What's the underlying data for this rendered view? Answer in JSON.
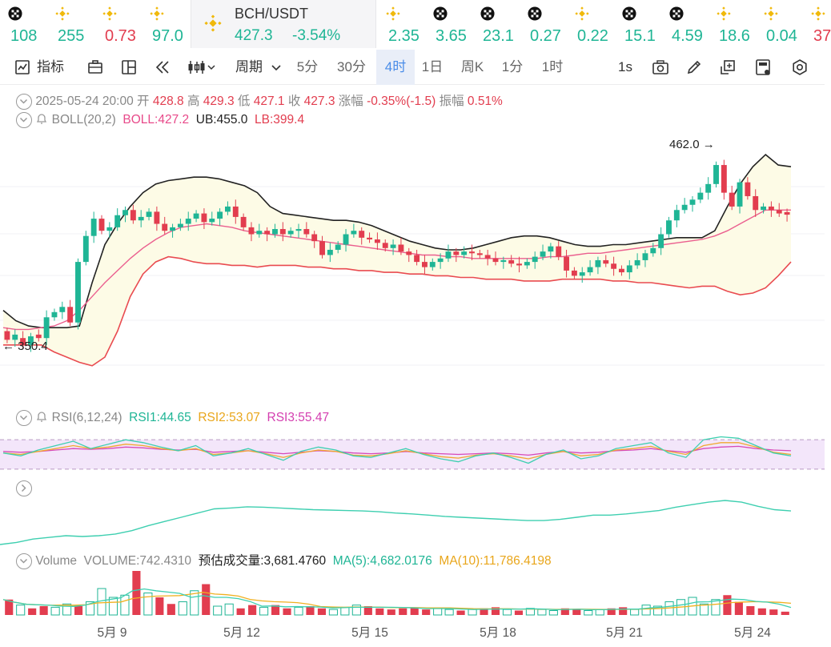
{
  "ticker": {
    "items": [
      {
        "icon": "okx-icon",
        "value": "108",
        "trend": "up"
      },
      {
        "icon": "binance-icon",
        "value": "255",
        "trend": "up"
      },
      {
        "icon": "binance-icon",
        "value": "0.73",
        "trend": "down"
      },
      {
        "icon": "binance-icon",
        "value": "97.0",
        "trend": "up"
      }
    ],
    "selected": {
      "icon": "binance-icon",
      "symbol": "BCH/USDT",
      "price": "427.3",
      "change": "-3.54%"
    },
    "items_right": [
      {
        "icon": "binance-icon",
        "value": "2.35",
        "trend": "up"
      },
      {
        "icon": "okx-icon",
        "value": "3.65",
        "trend": "up"
      },
      {
        "icon": "okx-icon",
        "value": "23.1",
        "trend": "up"
      },
      {
        "icon": "okx-icon",
        "value": "0.27",
        "trend": "up"
      },
      {
        "icon": "binance-icon",
        "value": "0.22",
        "trend": "up"
      },
      {
        "icon": "okx-icon",
        "value": "15.1",
        "trend": "up"
      },
      {
        "icon": "okx-icon",
        "value": "4.59",
        "trend": "up"
      },
      {
        "icon": "binance-icon",
        "value": "18.6",
        "trend": "up"
      },
      {
        "icon": "binance-icon",
        "value": "0.04",
        "trend": "up"
      },
      {
        "icon": "binance-icon",
        "value": "37",
        "trend": "down"
      }
    ]
  },
  "toolbar": {
    "indicators_label": "指标",
    "period_label": "周期",
    "intervals": [
      "5分",
      "30分",
      "4时",
      "1日",
      "周K",
      "1分",
      "1时"
    ],
    "active_interval": "4时",
    "speed_label": "1s"
  },
  "ohlc_info": {
    "datetime": "2025-05-24 20:00",
    "open_label": "开",
    "open": "428.8",
    "high_label": "高",
    "high": "429.3",
    "low_label": "低",
    "low": "427.1",
    "close_label": "收",
    "close": "427.3",
    "change_label": "涨幅",
    "change": "-0.35%(-1.5)",
    "amplitude_label": "振幅",
    "amplitude": "0.51%"
  },
  "boll_info": {
    "name": "BOLL(20,2)",
    "boll": "BOLL:427.2",
    "ub": "UB:455.0",
    "lb": "LB:399.4"
  },
  "rsi_info": {
    "name": "RSI(6,12,24)",
    "rsi1": "RSI1:44.65",
    "rsi2": "RSI2:53.07",
    "rsi3": "RSI3:55.47"
  },
  "volume_info": {
    "name": "Volume",
    "volume": "VOLUME:742.4310",
    "estimate": "预估成交量:3,681.4760",
    "ma5": "MA(5):4,682.0176",
    "ma10": "MA(10):11,786.4198"
  },
  "colors": {
    "up": "#1fb595",
    "down": "#e23d4f",
    "upper_band": "#222222",
    "lower_band": "#e94b50",
    "mid_band": "#eb5f8f",
    "band_fill": "#fdfbe6",
    "rsi1": "#3ecfb0",
    "rsi2": "#f0a830",
    "rsi3": "#d64ab8",
    "rsi_zone": "#f3e6fa",
    "ma5": "#3ecfb0",
    "ma10": "#f0b020"
  },
  "chart_data": {
    "type": "candlestick",
    "timeframe": "4h",
    "x_ticks": [
      "5月 9",
      "5月 12",
      "5月 15",
      "5月 18",
      "5月 21",
      "5月 24"
    ],
    "annotations": [
      {
        "text": "462.0",
        "kind": "high"
      },
      {
        "text": "350.4",
        "kind": "low"
      }
    ],
    "price_range": [
      320,
      475
    ],
    "candles": [
      [
        360,
        355
      ],
      [
        355,
        358
      ],
      [
        356,
        352
      ],
      [
        352,
        357
      ],
      [
        358,
        356
      ],
      [
        356,
        368
      ],
      [
        368,
        371
      ],
      [
        371,
        374
      ],
      [
        374,
        365
      ],
      [
        365,
        400
      ],
      [
        400,
        415
      ],
      [
        415,
        425
      ],
      [
        425,
        418
      ],
      [
        418,
        420
      ],
      [
        420,
        427
      ],
      [
        427,
        430
      ],
      [
        430,
        424
      ],
      [
        424,
        426
      ],
      [
        426,
        429
      ],
      [
        429,
        422
      ],
      [
        422,
        418
      ],
      [
        418,
        420
      ],
      [
        420,
        422
      ],
      [
        422,
        425
      ],
      [
        425,
        428
      ],
      [
        428,
        423
      ],
      [
        423,
        425
      ],
      [
        425,
        429
      ],
      [
        429,
        432
      ],
      [
        432,
        426
      ],
      [
        426,
        420
      ],
      [
        420,
        416
      ],
      [
        416,
        418
      ],
      [
        418,
        416
      ],
      [
        416,
        419
      ],
      [
        419,
        416
      ],
      [
        416,
        418
      ],
      [
        418,
        419
      ],
      [
        419,
        416
      ],
      [
        416,
        412
      ],
      [
        412,
        404
      ],
      [
        404,
        407
      ],
      [
        407,
        410
      ],
      [
        410,
        416
      ],
      [
        416,
        418
      ],
      [
        418,
        414
      ],
      [
        414,
        413
      ],
      [
        413,
        411
      ],
      [
        411,
        408
      ],
      [
        408,
        410
      ],
      [
        410,
        406
      ],
      [
        406,
        404
      ],
      [
        404,
        400
      ],
      [
        400,
        397
      ],
      [
        397,
        400
      ],
      [
        400,
        402
      ],
      [
        402,
        406
      ],
      [
        406,
        404
      ],
      [
        404,
        406
      ],
      [
        406,
        405
      ],
      [
        405,
        404
      ],
      [
        404,
        402
      ],
      [
        402,
        400
      ],
      [
        400,
        401
      ],
      [
        401,
        399
      ],
      [
        399,
        398
      ],
      [
        398,
        400
      ],
      [
        400,
        403
      ],
      [
        403,
        406
      ],
      [
        406,
        409
      ],
      [
        409,
        403
      ],
      [
        403,
        395
      ],
      [
        395,
        392
      ],
      [
        392,
        394
      ],
      [
        394,
        397
      ],
      [
        397,
        401
      ],
      [
        401,
        399
      ],
      [
        399,
        396
      ],
      [
        396,
        394
      ],
      [
        394,
        398
      ],
      [
        398,
        401
      ],
      [
        401,
        405
      ],
      [
        405,
        408
      ],
      [
        408,
        416
      ],
      [
        416,
        424
      ],
      [
        424,
        430
      ],
      [
        430,
        433
      ],
      [
        433,
        436
      ],
      [
        436,
        440
      ],
      [
        440,
        445
      ],
      [
        445,
        456
      ],
      [
        456,
        440
      ],
      [
        440,
        432
      ],
      [
        432,
        446
      ],
      [
        446,
        438
      ],
      [
        438,
        430
      ],
      [
        430,
        432
      ],
      [
        432,
        430
      ],
      [
        430,
        428
      ],
      [
        428.8,
        427.3
      ]
    ],
    "boll_upper": [
      372,
      366,
      363,
      362,
      362,
      362,
      363,
      388,
      410,
      422,
      432,
      440,
      445,
      447,
      448,
      449,
      449,
      448,
      446,
      444,
      440,
      432,
      428,
      427,
      426,
      425,
      424,
      424,
      423,
      421,
      418,
      415,
      412,
      410,
      408,
      407,
      407,
      408,
      410,
      412,
      414,
      415,
      415,
      414,
      412,
      410,
      409,
      409,
      410,
      410,
      411,
      412,
      413,
      414,
      414,
      414,
      418,
      432,
      445,
      455,
      462,
      456,
      455
    ],
    "boll_mid": [
      362,
      361,
      361,
      362,
      363,
      366,
      372,
      380,
      388,
      395,
      402,
      408,
      413,
      417,
      420,
      421,
      422,
      421,
      420,
      418,
      417,
      416,
      415,
      414,
      413,
      412,
      411,
      410,
      409,
      408,
      407,
      406,
      405,
      404,
      404,
      403,
      403,
      402,
      402,
      402,
      402,
      402,
      402,
      403,
      403,
      404,
      405,
      405,
      406,
      407,
      408,
      409,
      410,
      411,
      412,
      413,
      415,
      418,
      422,
      426,
      430,
      430,
      430
    ],
    "boll_lower": [
      352,
      352,
      352,
      352,
      348,
      345,
      342,
      340,
      345,
      360,
      380,
      393,
      400,
      403,
      402,
      400,
      399,
      399,
      398,
      398,
      397,
      398,
      398,
      398,
      397,
      397,
      396,
      396,
      395,
      395,
      394,
      394,
      393,
      393,
      392,
      392,
      391,
      391,
      390,
      390,
      390,
      389,
      389,
      389,
      390,
      390,
      390,
      390,
      389,
      389,
      388,
      388,
      387,
      386,
      385,
      386,
      386,
      383,
      381,
      382,
      385,
      392,
      400
    ],
    "rsi_levels": {
      "upper": 70,
      "lower": 30
    },
    "rsi1": [
      52,
      48,
      56,
      62,
      68,
      58,
      64,
      70,
      66,
      60,
      55,
      62,
      48,
      52,
      58,
      50,
      42,
      54,
      60,
      56,
      48,
      46,
      52,
      58,
      50,
      44,
      40,
      48,
      52,
      46,
      38,
      50,
      56,
      44,
      48,
      58,
      62,
      66,
      52,
      46,
      70,
      74,
      72,
      62,
      52,
      48
    ],
    "rsi2": [
      52,
      50,
      54,
      58,
      62,
      58,
      60,
      64,
      62,
      58,
      55,
      58,
      50,
      52,
      55,
      51,
      46,
      52,
      56,
      54,
      49,
      48,
      51,
      55,
      51,
      47,
      45,
      49,
      51,
      48,
      44,
      50,
      54,
      48,
      50,
      56,
      58,
      61,
      54,
      50,
      62,
      66,
      66,
      60,
      53,
      50
    ],
    "rsi3": [
      54,
      53,
      54,
      56,
      58,
      57,
      58,
      60,
      59,
      57,
      56,
      57,
      53,
      54,
      55,
      53,
      51,
      53,
      55,
      54,
      52,
      51,
      52,
      54,
      52,
      51,
      50,
      51,
      52,
      51,
      49,
      52,
      54,
      52,
      53,
      55,
      56,
      58,
      55,
      53,
      58,
      60,
      61,
      58,
      56,
      55
    ],
    "obv": [
      655,
      660,
      668,
      672,
      676,
      674,
      676,
      680,
      688,
      700,
      710,
      720,
      730,
      740,
      742,
      745,
      744,
      742,
      740,
      738,
      737,
      736,
      735,
      733,
      730,
      728,
      725,
      722,
      720,
      718,
      716,
      714,
      712,
      712,
      715,
      720,
      725,
      725,
      728,
      732,
      736,
      744,
      750,
      756,
      760,
      756,
      746,
      738,
      735
    ],
    "volume": [
      14,
      9,
      6,
      8,
      7,
      10,
      8,
      12,
      24,
      16,
      18,
      40,
      20,
      16,
      10,
      12,
      22,
      28,
      8,
      10,
      6,
      9,
      7,
      9,
      6,
      7,
      8,
      6,
      5,
      7,
      9,
      8,
      6,
      5,
      6,
      7,
      5,
      6,
      5,
      4,
      5,
      6,
      7,
      5,
      4,
      6,
      5,
      4,
      6,
      5,
      4,
      5,
      6,
      7,
      5,
      9,
      8,
      12,
      14,
      16,
      10,
      14,
      18,
      12,
      8,
      6,
      5,
      3
    ]
  }
}
